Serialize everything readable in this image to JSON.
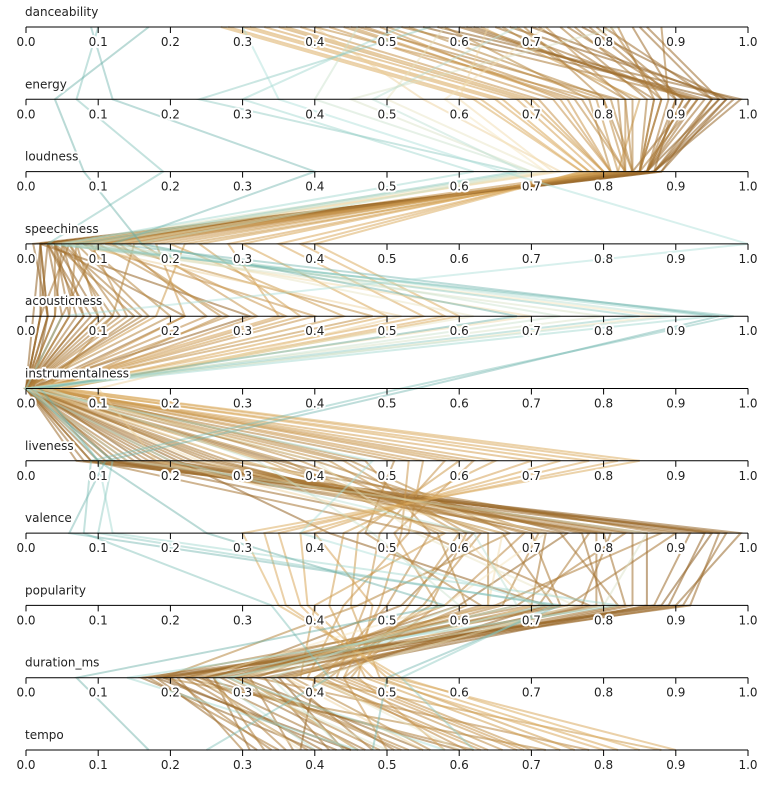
{
  "chart_data": {
    "type": "parallel-coordinates",
    "orientation": "horizontal-axes-stacked",
    "dimensions": [
      "danceability",
      "energy",
      "loudness",
      "speechiness",
      "acousticness",
      "instrumentalness",
      "liveness",
      "valence",
      "popularity",
      "duration_ms",
      "tempo"
    ],
    "ticks": [
      "0.0",
      "0.1",
      "0.2",
      "0.3",
      "0.4",
      "0.5",
      "0.6",
      "0.7",
      "0.8",
      "0.9",
      "1.0"
    ],
    "domain": [
      0,
      1
    ],
    "color_scale": {
      "low": "#3a8f85",
      "mid_low": "#a9ddd6",
      "mid": "#f5e3b8",
      "mid_high": "#d9a75a",
      "high": "#7a4a12"
    },
    "grid": false,
    "legend": "none",
    "records": [
      {
        "c": 0.95,
        "v": [
          0.55,
          0.96,
          0.86,
          0.02,
          0.03,
          0.01,
          0.16,
          0.95,
          0.88,
          0.18,
          0.45
        ]
      },
      {
        "c": 0.92,
        "v": [
          0.62,
          0.92,
          0.84,
          0.04,
          0.1,
          0.0,
          0.35,
          0.75,
          0.6,
          0.3,
          0.55
        ]
      },
      {
        "c": 0.88,
        "v": [
          0.71,
          0.87,
          0.85,
          0.06,
          0.02,
          0.0,
          0.09,
          0.55,
          0.78,
          0.36,
          0.48
        ]
      },
      {
        "c": 0.9,
        "v": [
          0.8,
          0.95,
          0.88,
          0.03,
          0.22,
          0.01,
          0.12,
          0.62,
          0.52,
          0.26,
          0.31
        ]
      },
      {
        "c": 0.86,
        "v": [
          0.46,
          0.82,
          0.83,
          0.1,
          0.05,
          0.0,
          0.28,
          0.88,
          0.65,
          0.22,
          0.62
        ]
      },
      {
        "c": 0.93,
        "v": [
          0.67,
          0.98,
          0.87,
          0.02,
          0.31,
          0.0,
          0.21,
          0.42,
          0.72,
          0.4,
          0.38
        ]
      },
      {
        "c": 0.84,
        "v": [
          0.58,
          0.78,
          0.81,
          0.15,
          0.12,
          0.03,
          0.45,
          0.67,
          0.46,
          0.19,
          0.72
        ]
      },
      {
        "c": 0.89,
        "v": [
          0.75,
          0.91,
          0.86,
          0.05,
          0.08,
          0.0,
          0.11,
          0.8,
          0.83,
          0.33,
          0.42
        ]
      },
      {
        "c": 0.8,
        "v": [
          0.38,
          0.71,
          0.8,
          0.08,
          0.4,
          0.02,
          0.62,
          0.51,
          0.57,
          0.44,
          0.5
        ]
      },
      {
        "c": 0.91,
        "v": [
          0.84,
          0.9,
          0.87,
          0.03,
          0.02,
          0.0,
          0.07,
          0.97,
          0.91,
          0.24,
          0.6
        ]
      },
      {
        "c": 0.78,
        "v": [
          0.63,
          0.85,
          0.82,
          0.22,
          0.18,
          0.0,
          0.33,
          0.58,
          0.4,
          0.38,
          0.88
        ]
      },
      {
        "c": 0.87,
        "v": [
          0.52,
          0.93,
          0.85,
          0.04,
          0.15,
          0.01,
          0.25,
          0.72,
          0.7,
          0.17,
          0.35
        ]
      },
      {
        "c": 0.85,
        "v": [
          0.69,
          0.8,
          0.84,
          0.07,
          0.06,
          0.0,
          0.51,
          0.47,
          0.63,
          0.29,
          0.52
        ]
      },
      {
        "c": 0.94,
        "v": [
          0.77,
          0.97,
          0.88,
          0.02,
          0.01,
          0.0,
          0.14,
          0.86,
          0.86,
          0.35,
          0.44
        ]
      },
      {
        "c": 0.82,
        "v": [
          0.44,
          0.76,
          0.83,
          0.12,
          0.27,
          0.04,
          0.38,
          0.63,
          0.55,
          0.42,
          0.66
        ]
      },
      {
        "c": 0.88,
        "v": [
          0.88,
          0.89,
          0.86,
          0.05,
          0.04,
          0.0,
          0.19,
          0.9,
          0.75,
          0.21,
          0.3
        ]
      },
      {
        "c": 0.76,
        "v": [
          0.33,
          0.68,
          0.79,
          0.28,
          0.35,
          0.01,
          0.7,
          0.4,
          0.48,
          0.46,
          0.58
        ]
      },
      {
        "c": 0.9,
        "v": [
          0.6,
          0.94,
          0.86,
          0.03,
          0.09,
          0.0,
          0.23,
          0.77,
          0.8,
          0.27,
          0.47
        ]
      },
      {
        "c": 0.83,
        "v": [
          0.72,
          0.83,
          0.83,
          0.09,
          0.14,
          0.0,
          0.3,
          0.69,
          0.58,
          0.32,
          0.78
        ]
      },
      {
        "c": 0.92,
        "v": [
          0.57,
          0.99,
          0.87,
          0.01,
          0.03,
          0.0,
          0.1,
          0.99,
          0.9,
          0.16,
          0.4
        ]
      },
      {
        "c": 0.79,
        "v": [
          0.49,
          0.74,
          0.81,
          0.18,
          0.22,
          0.02,
          0.55,
          0.53,
          0.44,
          0.39,
          0.63
        ]
      },
      {
        "c": 0.86,
        "v": [
          0.81,
          0.88,
          0.85,
          0.06,
          0.11,
          0.0,
          0.17,
          0.83,
          0.68,
          0.25,
          0.36
        ]
      },
      {
        "c": 0.81,
        "v": [
          0.4,
          0.79,
          0.82,
          0.11,
          0.48,
          0.01,
          0.42,
          0.6,
          0.53,
          0.45,
          0.7
        ]
      },
      {
        "c": 0.89,
        "v": [
          0.65,
          0.92,
          0.86,
          0.04,
          0.07,
          0.0,
          0.13,
          0.74,
          0.82,
          0.3,
          0.46
        ]
      },
      {
        "c": 0.74,
        "v": [
          0.3,
          0.65,
          0.78,
          0.35,
          0.55,
          0.03,
          0.78,
          0.35,
          0.38,
          0.48,
          0.8
        ]
      },
      {
        "c": 0.87,
        "v": [
          0.74,
          0.86,
          0.85,
          0.05,
          0.16,
          0.0,
          0.27,
          0.66,
          0.73,
          0.2,
          0.34
        ]
      },
      {
        "c": 0.84,
        "v": [
          0.53,
          0.81,
          0.84,
          0.08,
          0.2,
          0.0,
          0.36,
          0.57,
          0.61,
          0.37,
          0.56
        ]
      },
      {
        "c": 0.91,
        "v": [
          0.85,
          0.95,
          0.87,
          0.03,
          0.05,
          0.0,
          0.08,
          0.92,
          0.87,
          0.23,
          0.41
        ]
      },
      {
        "c": 0.77,
        "v": [
          0.36,
          0.7,
          0.8,
          0.24,
          0.38,
          0.02,
          0.65,
          0.44,
          0.42,
          0.47,
          0.74
        ]
      },
      {
        "c": 0.85,
        "v": [
          0.68,
          0.84,
          0.84,
          0.07,
          0.1,
          0.0,
          0.4,
          0.71,
          0.66,
          0.28,
          0.49
        ]
      },
      {
        "c": 0.72,
        "v": [
          0.27,
          0.62,
          0.77,
          0.4,
          0.6,
          0.05,
          0.85,
          0.3,
          0.35,
          0.52,
          0.85
        ]
      },
      {
        "c": 0.88,
        "v": [
          0.78,
          0.9,
          0.86,
          0.04,
          0.04,
          0.0,
          0.15,
          0.81,
          0.77,
          0.31,
          0.37
        ]
      },
      {
        "c": 0.83,
        "v": [
          0.47,
          0.77,
          0.83,
          0.13,
          0.25,
          0.01,
          0.47,
          0.56,
          0.5,
          0.41,
          0.61
        ]
      },
      {
        "c": 0.93,
        "v": [
          0.7,
          0.97,
          0.87,
          0.02,
          0.02,
          0.0,
          0.12,
          0.94,
          0.89,
          0.19,
          0.43
        ]
      },
      {
        "c": 0.8,
        "v": [
          0.42,
          0.73,
          0.81,
          0.16,
          0.32,
          0.03,
          0.58,
          0.49,
          0.47,
          0.43,
          0.68
        ]
      },
      {
        "c": 0.86,
        "v": [
          0.82,
          0.87,
          0.85,
          0.06,
          0.13,
          0.0,
          0.22,
          0.78,
          0.71,
          0.26,
          0.33
        ]
      },
      {
        "c": 0.78,
        "v": [
          0.35,
          0.69,
          0.8,
          0.2,
          0.44,
          0.02,
          0.6,
          0.46,
          0.45,
          0.49,
          0.76
        ]
      },
      {
        "c": 0.9,
        "v": [
          0.61,
          0.93,
          0.86,
          0.03,
          0.08,
          0.0,
          0.18,
          0.84,
          0.84,
          0.34,
          0.51
        ]
      },
      {
        "c": 0.75,
        "v": [
          0.31,
          0.66,
          0.78,
          0.3,
          0.5,
          0.04,
          0.74,
          0.38,
          0.39,
          0.5,
          0.82
        ]
      },
      {
        "c": 0.87,
        "v": [
          0.76,
          0.88,
          0.85,
          0.05,
          0.12,
          0.0,
          0.26,
          0.7,
          0.74,
          0.22,
          0.39
        ]
      },
      {
        "c": 0.82,
        "v": [
          0.5,
          0.8,
          0.83,
          0.1,
          0.28,
          0.01,
          0.44,
          0.61,
          0.56,
          0.4,
          0.64
        ]
      },
      {
        "c": 0.91,
        "v": [
          0.86,
          0.96,
          0.87,
          0.02,
          0.03,
          0.0,
          0.09,
          0.96,
          0.92,
          0.18,
          0.32
        ]
      },
      {
        "c": 0.73,
        "v": [
          0.28,
          0.63,
          0.77,
          0.38,
          0.58,
          0.05,
          0.82,
          0.33,
          0.36,
          0.51,
          0.9
        ]
      },
      {
        "c": 0.85,
        "v": [
          0.66,
          0.83,
          0.84,
          0.07,
          0.17,
          0.0,
          0.34,
          0.64,
          0.64,
          0.29,
          0.53
        ]
      },
      {
        "c": 0.89,
        "v": [
          0.79,
          0.91,
          0.86,
          0.04,
          0.06,
          0.0,
          0.2,
          0.79,
          0.79,
          0.24,
          0.45
        ]
      },
      {
        "c": 0.79,
        "v": [
          0.45,
          0.75,
          0.81,
          0.14,
          0.36,
          0.02,
          0.53,
          0.52,
          0.49,
          0.44,
          0.69
        ]
      },
      {
        "c": 0.6,
        "v": [
          0.4,
          0.55,
          0.74,
          0.06,
          0.52,
          0.1,
          0.18,
          0.6,
          0.7,
          0.36,
          0.55
        ]
      },
      {
        "c": 0.55,
        "v": [
          0.64,
          0.6,
          0.73,
          0.08,
          0.7,
          0.0,
          0.24,
          0.66,
          0.64,
          0.3,
          0.46
        ]
      },
      {
        "c": 0.5,
        "v": [
          0.72,
          0.58,
          0.72,
          0.05,
          0.88,
          0.01,
          0.3,
          0.72,
          0.58,
          0.24,
          0.38
        ]
      },
      {
        "c": 0.45,
        "v": [
          0.58,
          0.5,
          0.72,
          0.12,
          0.62,
          0.02,
          0.4,
          0.54,
          0.76,
          0.4,
          0.6
        ]
      },
      {
        "c": 0.4,
        "v": [
          0.82,
          0.45,
          0.7,
          0.04,
          0.8,
          0.0,
          0.14,
          0.86,
          0.8,
          0.28,
          0.5
        ]
      },
      {
        "c": 0.35,
        "v": [
          0.46,
          0.4,
          0.7,
          0.15,
          0.74,
          0.03,
          0.32,
          0.48,
          0.6,
          0.34,
          0.44
        ]
      },
      {
        "c": 0.3,
        "v": [
          0.68,
          0.48,
          0.69,
          0.09,
          0.9,
          0.0,
          0.2,
          0.62,
          0.68,
          0.26,
          0.4
        ]
      },
      {
        "c": 0.22,
        "v": [
          0.52,
          0.3,
          0.62,
          0.05,
          0.95,
          0.01,
          0.1,
          0.12,
          0.82,
          0.14,
          0.46
        ]
      },
      {
        "c": 0.15,
        "v": [
          0.1,
          0.07,
          0.19,
          0.03,
          0.98,
          0.52,
          0.09,
          0.08,
          0.34,
          0.42,
          0.25
        ]
      },
      {
        "c": 0.12,
        "v": [
          0.09,
          0.12,
          0.4,
          0.12,
          0.96,
          0.54,
          0.11,
          0.06,
          0.74,
          0.5,
          0.48
        ]
      },
      {
        "c": 0.18,
        "v": [
          0.56,
          0.24,
          0.68,
          0.07,
          0.85,
          0.0,
          0.12,
          0.1,
          0.73,
          0.52,
          0.62
        ]
      },
      {
        "c": 0.1,
        "v": [
          0.17,
          0.04,
          0.08,
          0.16,
          0.68,
          0.02,
          0.1,
          0.25,
          0.58,
          0.07,
          0.17
        ]
      },
      {
        "c": 0.25,
        "v": [
          0.3,
          0.35,
          0.66,
          1.0,
          0.05,
          0.0,
          0.48,
          0.38,
          0.72,
          0.28,
          0.58
        ]
      }
    ]
  }
}
